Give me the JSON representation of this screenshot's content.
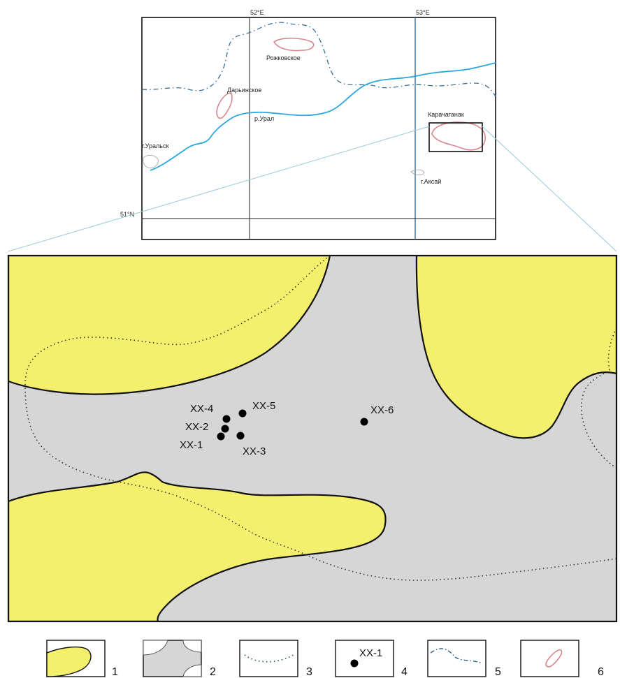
{
  "overview": {
    "coords": {
      "lon1": "52°E",
      "lon2": "53°E",
      "lat": "51°N"
    },
    "places": {
      "uralsk": "г.Уральск",
      "aksay": "г.Аксай",
      "river": "р.Урал",
      "darinskoe": "Дарьинское",
      "rozhkovskoe": "Рожковское",
      "karachaganak": "Карачаганак"
    }
  },
  "detail": {
    "wells": [
      {
        "id": "XX-1"
      },
      {
        "id": "XX-2"
      },
      {
        "id": "XX-3"
      },
      {
        "id": "XX-4"
      },
      {
        "id": "XX-5"
      },
      {
        "id": "XX-6"
      }
    ]
  },
  "legend": {
    "items": [
      {
        "num": "1",
        "desc": "yellow area"
      },
      {
        "num": "2",
        "desc": "grey area"
      },
      {
        "num": "3",
        "desc": "dotted boundary"
      },
      {
        "num": "4",
        "desc": "well",
        "sample": "XX-1"
      },
      {
        "num": "5",
        "desc": "dash-dot boundary"
      },
      {
        "num": "6",
        "desc": "field outline"
      }
    ]
  },
  "colors": {
    "yellow": "#f5ef6e",
    "grey": "#d6d6d6",
    "river": "#2aa7dc",
    "field": "#d9868a",
    "border": "#3b6e96"
  }
}
